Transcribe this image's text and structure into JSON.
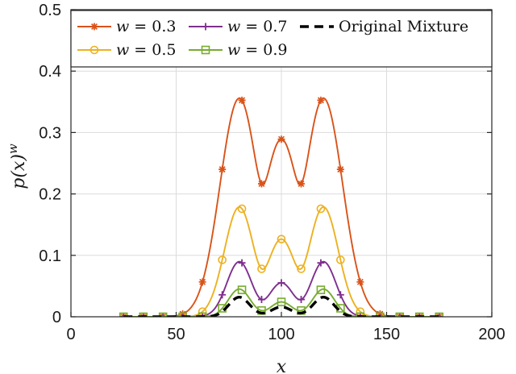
{
  "chart_data": {
    "type": "line",
    "xlabel": "x",
    "ylabel_main": "p(x)",
    "ylabel_sup": "w",
    "xlim": [
      0,
      200
    ],
    "ylim": [
      0,
      0.5
    ],
    "xticks": [
      "0",
      "50",
      "100",
      "150",
      "200"
    ],
    "yticks": [
      "0",
      "0.1",
      "0.2",
      "0.3",
      "0.4",
      "0.5"
    ],
    "grid": true,
    "legend_position": "top",
    "mixture": {
      "components": [
        {
          "mean": 80,
          "sd": 5,
          "weight": 0.4
        },
        {
          "mean": 100,
          "sd": 5,
          "weight": 0.2
        },
        {
          "mean": 120,
          "sd": 5,
          "weight": 0.4
        }
      ],
      "x_start": 25,
      "x_end": 175
    },
    "marker_x": [
      25,
      34.4,
      43.75,
      53.1,
      62.5,
      71.9,
      81.25,
      90.6,
      100,
      109.4,
      118.75,
      128.1,
      137.5,
      146.9,
      156.25,
      165.6,
      175
    ],
    "series": [
      {
        "name": "w = 0.3",
        "var": "w",
        "eq": "= 0.3",
        "w": 0.3,
        "color": "#D95319",
        "marker": "asterisk",
        "marker_offset": 0
      },
      {
        "name": "w = 0.7",
        "var": "w",
        "eq": "= 0.7",
        "w": 0.7,
        "color": "#7E2F8E",
        "marker": "plus",
        "marker_offset": 0
      },
      {
        "name": "w = 0.5",
        "var": "w",
        "eq": "= 0.5",
        "w": 0.5,
        "color": "#EDB120",
        "marker": "circle",
        "marker_offset": 0
      },
      {
        "name": "w = 0.9",
        "var": "w",
        "eq": "= 0.9",
        "w": 0.9,
        "color": "#77AC30",
        "marker": "square",
        "marker_offset": 0
      },
      {
        "name": "Original Mixture",
        "var": "",
        "eq": "Original Mixture",
        "w": 1.0,
        "color": "#000000",
        "marker": "none",
        "dashed": true
      }
    ]
  }
}
